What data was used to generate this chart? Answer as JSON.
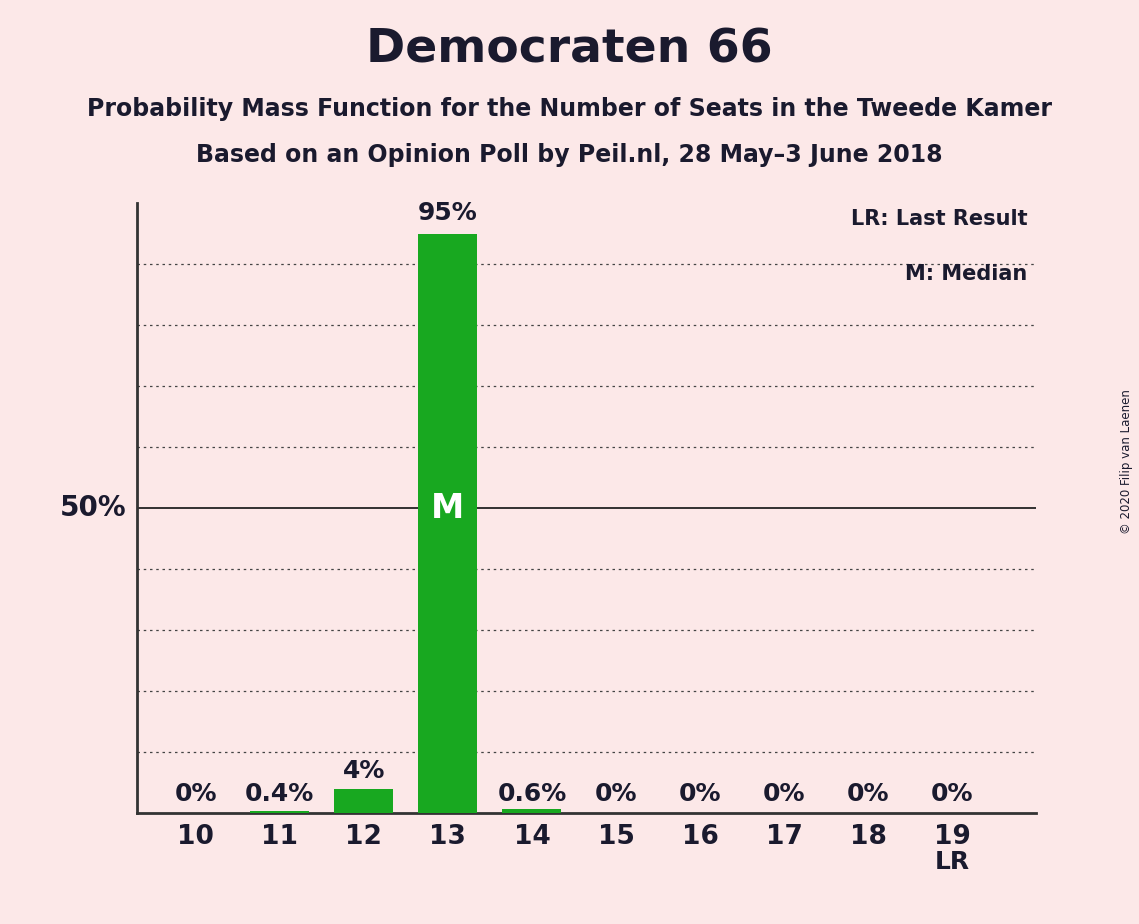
{
  "title": "Democraten 66",
  "subtitle1": "Probability Mass Function for the Number of Seats in the Tweede Kamer",
  "subtitle2": "Based on an Opinion Poll by Peil.nl, 28 May–3 June 2018",
  "copyright": "© 2020 Filip van Laenen",
  "categories": [
    10,
    11,
    12,
    13,
    14,
    15,
    16,
    17,
    18,
    19
  ],
  "values": [
    0.0,
    0.4,
    4.0,
    95.0,
    0.6,
    0.0,
    0.0,
    0.0,
    0.0,
    0.0
  ],
  "bar_color": "#18a820",
  "background_color": "#fce8e8",
  "label_color": "#1a1a2e",
  "median_seat": 13,
  "last_result_seat": 19,
  "bar_labels": [
    "0%",
    "0.4%",
    "4%",
    "95%",
    "0.6%",
    "0%",
    "0%",
    "0%",
    "0%",
    "0%"
  ],
  "legend_lr": "LR: Last Result",
  "legend_m": "M: Median",
  "yticks": [
    10,
    20,
    30,
    40,
    50,
    60,
    70,
    80,
    90
  ]
}
